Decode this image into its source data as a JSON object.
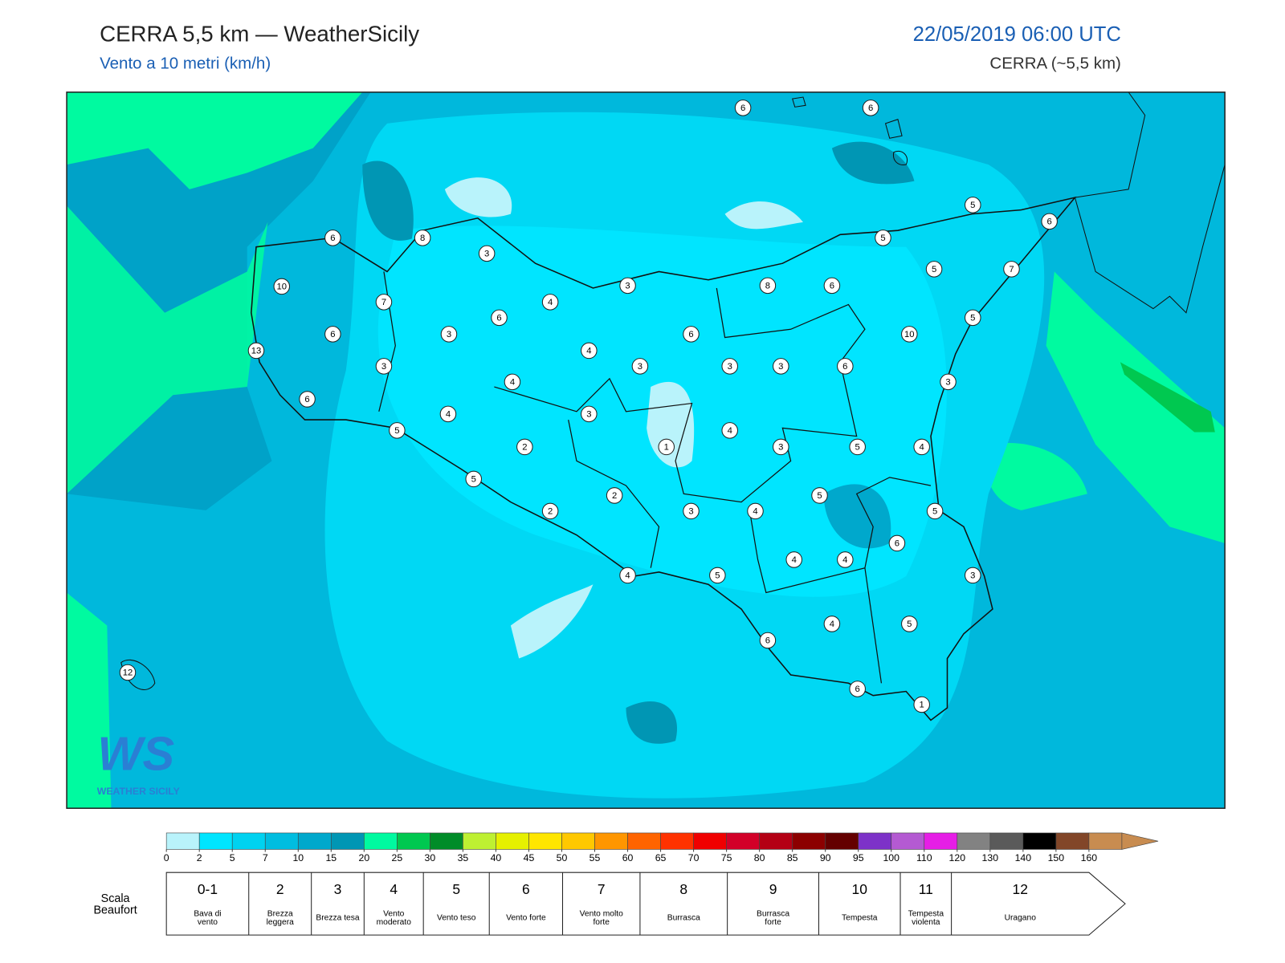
{
  "header": {
    "title": "CERRA 5,5 km — WeatherSicily",
    "subtitle": "Vento a 10 metri (km/h)",
    "datetime": "22/05/2019 06:00 UTC",
    "model": "CERRA (~5,5 km)"
  },
  "map": {
    "stations": [
      6,
      6,
      5,
      6,
      6,
      8,
      3,
      5,
      5,
      7,
      10,
      3,
      8,
      6,
      7,
      4,
      6,
      5,
      6,
      3,
      6,
      10,
      13,
      4,
      3,
      3,
      3,
      3,
      6,
      3,
      4,
      6,
      4,
      3,
      5,
      4,
      2,
      1,
      3,
      5,
      4,
      5,
      2,
      5,
      2,
      3,
      4,
      5,
      6,
      4,
      4,
      4,
      5,
      3,
      4,
      5,
      6,
      6,
      1,
      12
    ]
  },
  "logo": {
    "initials": "WS",
    "name": "WEATHER SICILY"
  },
  "colorbar": {
    "ticks": [
      0,
      2,
      5,
      7,
      10,
      15,
      20,
      25,
      30,
      35,
      40,
      45,
      50,
      55,
      60,
      65,
      70,
      75,
      80,
      85,
      90,
      95,
      100,
      110,
      120,
      130,
      140,
      150,
      160
    ],
    "colors": [
      "#b9f3fb",
      "#00e5ff",
      "#00d2f0",
      "#00bde0",
      "#00a8cc",
      "#0096b4",
      "#00faa0",
      "#00c850",
      "#008c28",
      "#bef032",
      "#e6f000",
      "#ffe600",
      "#ffc800",
      "#ff9600",
      "#ff6400",
      "#ff3200",
      "#f00000",
      "#d20028",
      "#b40014",
      "#8c0000",
      "#640000",
      "#7d32c8",
      "#b45ad2",
      "#e61ee6",
      "#828282",
      "#5a5a5a",
      "#000000",
      "#824628",
      "#c88c50"
    ]
  },
  "beaufort": {
    "label": "Scala Beaufort",
    "levels": [
      {
        "force": "0-1",
        "name": "Bava di vento"
      },
      {
        "force": "2",
        "name": "Brezza leggera"
      },
      {
        "force": "3",
        "name": "Brezza tesa"
      },
      {
        "force": "4",
        "name": "Vento moderato"
      },
      {
        "force": "5",
        "name": "Vento teso"
      },
      {
        "force": "6",
        "name": "Vento forte"
      },
      {
        "force": "7",
        "name": "Vento molto forte"
      },
      {
        "force": "8",
        "name": "Burrasca"
      },
      {
        "force": "9",
        "name": "Burrasca forte"
      },
      {
        "force": "10",
        "name": "Tempesta"
      },
      {
        "force": "11",
        "name": "Tempesta violenta"
      },
      {
        "force": "12",
        "name": "Uragano"
      }
    ]
  }
}
